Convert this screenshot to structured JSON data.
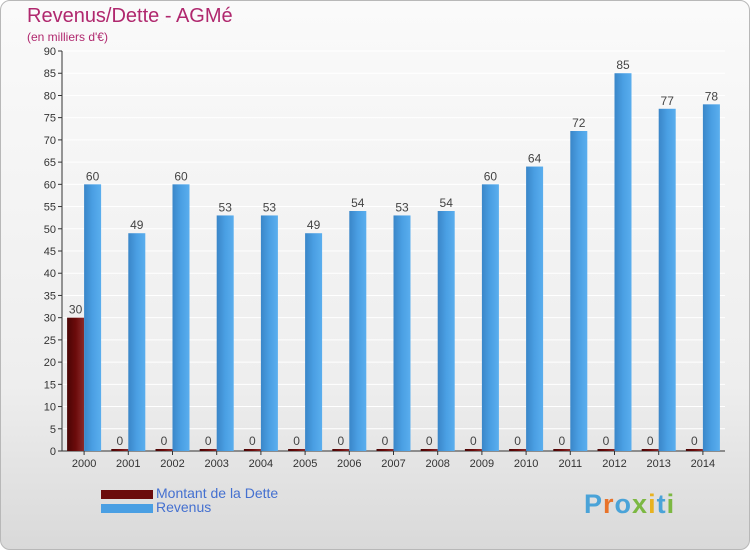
{
  "colors": {
    "debt": "#6b0b0b",
    "revenue": "#4a9fe3",
    "axis": "#333333",
    "grid": "#ffffff"
  },
  "legend": {
    "debt_label": "Montant de la Dette",
    "revenue_label": "Revenus"
  },
  "brand": {
    "letters": [
      {
        "ch": "P",
        "color": "#4aa3d8"
      },
      {
        "ch": "r",
        "color": "#e8732a"
      },
      {
        "ch": "o",
        "color": "#4aa3d8"
      },
      {
        "ch": "x",
        "color": "#7cb842"
      },
      {
        "ch": "i",
        "color": "#e8b220"
      },
      {
        "ch": "t",
        "color": "#4aa3d8"
      },
      {
        "ch": "i",
        "color": "#7cb842"
      }
    ]
  },
  "chart_data": {
    "type": "bar",
    "title": "Revenus/Dette - AGMé",
    "subtitle": "(en milliers d'€)",
    "categories": [
      "2000",
      "2001",
      "2002",
      "2003",
      "2004",
      "2005",
      "2006",
      "2007",
      "2008",
      "2009",
      "2010",
      "2011",
      "2012",
      "2013",
      "2014"
    ],
    "series": [
      {
        "name": "Montant de la Dette",
        "values": [
          30,
          0,
          0,
          0,
          0,
          0,
          0,
          0,
          0,
          0,
          0,
          0,
          0,
          0,
          0
        ]
      },
      {
        "name": "Revenus",
        "values": [
          60,
          49,
          60,
          53,
          53,
          49,
          54,
          53,
          54,
          60,
          64,
          72,
          85,
          77,
          78
        ]
      }
    ],
    "ylim": [
      0,
      90
    ],
    "ytick_step": 5,
    "grid": true,
    "legend_position": "bottom-left"
  }
}
